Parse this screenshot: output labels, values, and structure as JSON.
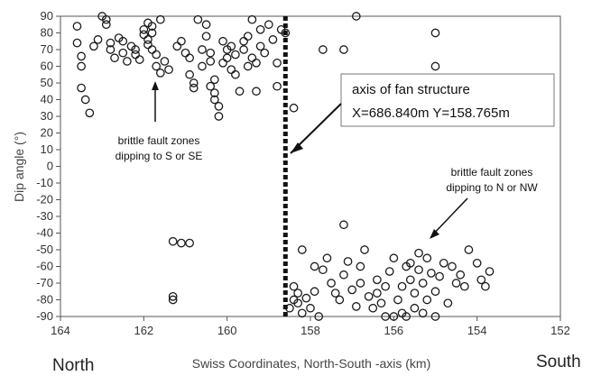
{
  "chart_data": {
    "type": "scatter",
    "xlabel": "Swiss Coordinates, North-South -axis (km)",
    "ylabel": "Dip angle (°)",
    "x_ticks": [
      "164",
      "162",
      "160",
      "158",
      "156",
      "154",
      "152"
    ],
    "y_ticks": [
      "90",
      "80",
      "70",
      "60",
      "50",
      "40",
      "30",
      "20",
      "10",
      "0",
      "-10",
      "-20",
      "-30",
      "-40",
      "-50",
      "-60",
      "-70",
      "-80",
      "-90"
    ],
    "xlim": [
      164,
      152
    ],
    "ylim": [
      -90,
      90
    ],
    "x_reversed": true,
    "left_direction_label": "North",
    "right_direction_label": "South",
    "fan_axis": {
      "x": 158.6,
      "style": "thick dotted vertical line",
      "label_title": "axis of fan structure",
      "label_coords": "X=686.840m  Y=158.765m"
    },
    "annotations": [
      {
        "line1": "brittle fault zones",
        "line2": "dipping to S or SE"
      },
      {
        "line1": "brittle fault zones",
        "line2": "dipping to N or NW"
      }
    ],
    "series": [
      {
        "marker": "open-circle",
        "points": [
          [
            163.6,
            84
          ],
          [
            163.6,
            74
          ],
          [
            163.5,
            66
          ],
          [
            163.5,
            60
          ],
          [
            163.5,
            47
          ],
          [
            163.4,
            40
          ],
          [
            163.3,
            32
          ],
          [
            163.2,
            72
          ],
          [
            163.1,
            76
          ],
          [
            163.0,
            90
          ],
          [
            162.9,
            88
          ],
          [
            162.9,
            85
          ],
          [
            162.8,
            74
          ],
          [
            162.8,
            70
          ],
          [
            162.7,
            65
          ],
          [
            162.6,
            77
          ],
          [
            162.5,
            75
          ],
          [
            162.5,
            68
          ],
          [
            162.4,
            63
          ],
          [
            162.3,
            72
          ],
          [
            162.2,
            70
          ],
          [
            162.2,
            67
          ],
          [
            162.1,
            64
          ],
          [
            162.0,
            82
          ],
          [
            162.0,
            79
          ],
          [
            161.9,
            86
          ],
          [
            161.9,
            76
          ],
          [
            161.9,
            73
          ],
          [
            161.8,
            84
          ],
          [
            161.8,
            80
          ],
          [
            161.8,
            70
          ],
          [
            161.7,
            67
          ],
          [
            161.7,
            60
          ],
          [
            161.6,
            88
          ],
          [
            161.6,
            56
          ],
          [
            161.5,
            63
          ],
          [
            161.4,
            58
          ],
          [
            161.2,
            72
          ],
          [
            161.1,
            75
          ],
          [
            161.0,
            68
          ],
          [
            160.9,
            65
          ],
          [
            160.9,
            55
          ],
          [
            160.8,
            50
          ],
          [
            160.8,
            47
          ],
          [
            160.7,
            88
          ],
          [
            160.6,
            70
          ],
          [
            160.6,
            60
          ],
          [
            160.5,
            85
          ],
          [
            160.5,
            78
          ],
          [
            160.4,
            68
          ],
          [
            160.4,
            63
          ],
          [
            160.4,
            48
          ],
          [
            160.3,
            52
          ],
          [
            160.3,
            44
          ],
          [
            160.3,
            40
          ],
          [
            160.2,
            36
          ],
          [
            160.2,
            30
          ],
          [
            160.1,
            75
          ],
          [
            160.1,
            62
          ],
          [
            160.0,
            70
          ],
          [
            160.0,
            65
          ],
          [
            159.9,
            58
          ],
          [
            159.9,
            72
          ],
          [
            159.8,
            67
          ],
          [
            159.8,
            55
          ],
          [
            159.7,
            45
          ],
          [
            159.6,
            75
          ],
          [
            159.6,
            70
          ],
          [
            159.5,
            78
          ],
          [
            159.5,
            60
          ],
          [
            159.4,
            88
          ],
          [
            159.4,
            65
          ],
          [
            159.3,
            45
          ],
          [
            159.2,
            82
          ],
          [
            159.2,
            72
          ],
          [
            159.1,
            68
          ],
          [
            159.0,
            85
          ],
          [
            158.9,
            76
          ],
          [
            158.8,
            62
          ],
          [
            158.8,
            48
          ],
          [
            158.7,
            82
          ],
          [
            158.6,
            80
          ],
          [
            159.3,
            62
          ],
          [
            161.3,
            -45
          ],
          [
            161.1,
            -46
          ],
          [
            160.9,
            -46
          ],
          [
            161.3,
            -78
          ],
          [
            161.3,
            -80
          ],
          [
            158.4,
            35
          ],
          [
            157.7,
            70
          ],
          [
            157.2,
            70
          ],
          [
            156.9,
            90
          ],
          [
            155.0,
            80
          ],
          [
            155.0,
            60
          ],
          [
            158.5,
            -85
          ],
          [
            158.4,
            -72
          ],
          [
            158.4,
            -80
          ],
          [
            158.3,
            -76
          ],
          [
            158.3,
            -82
          ],
          [
            158.2,
            -50
          ],
          [
            158.2,
            -88
          ],
          [
            158.1,
            -79
          ],
          [
            158.0,
            -85
          ],
          [
            157.9,
            -75
          ],
          [
            157.8,
            -90
          ],
          [
            157.7,
            -62
          ],
          [
            157.6,
            -55
          ],
          [
            157.5,
            -70
          ],
          [
            157.4,
            -76
          ],
          [
            157.3,
            -80
          ],
          [
            157.2,
            -35
          ],
          [
            157.2,
            -65
          ],
          [
            157.1,
            -57
          ],
          [
            157.0,
            -74
          ],
          [
            156.9,
            -84
          ],
          [
            156.8,
            -70
          ],
          [
            156.8,
            -60
          ],
          [
            156.7,
            -50
          ],
          [
            156.6,
            -78
          ],
          [
            156.5,
            -85
          ],
          [
            156.4,
            -68
          ],
          [
            156.3,
            -82
          ],
          [
            156.2,
            -72
          ],
          [
            156.1,
            -63
          ],
          [
            156.0,
            -90
          ],
          [
            156.0,
            -55
          ],
          [
            155.9,
            -80
          ],
          [
            155.8,
            -72
          ],
          [
            155.7,
            -60
          ],
          [
            155.7,
            -90
          ],
          [
            155.6,
            -68
          ],
          [
            155.5,
            -76
          ],
          [
            155.5,
            -85
          ],
          [
            155.4,
            -62
          ],
          [
            155.4,
            -52
          ],
          [
            155.3,
            -88
          ],
          [
            155.3,
            -70
          ],
          [
            155.2,
            -80
          ],
          [
            155.1,
            -64
          ],
          [
            155.0,
            -75
          ],
          [
            155.0,
            -90
          ],
          [
            154.9,
            -66
          ],
          [
            154.8,
            -58
          ],
          [
            154.7,
            -82
          ],
          [
            154.6,
            -60
          ],
          [
            154.5,
            -70
          ],
          [
            154.3,
            -72
          ],
          [
            154.2,
            -50
          ],
          [
            154.0,
            -58
          ],
          [
            153.9,
            -68
          ],
          [
            153.8,
            -72
          ],
          [
            153.7,
            -63
          ],
          [
            156.2,
            -90
          ],
          [
            155.6,
            -58
          ],
          [
            157.9,
            -60
          ],
          [
            155.8,
            -88
          ],
          [
            156.4,
            -76
          ],
          [
            155.2,
            -55
          ],
          [
            154.4,
            -65
          ]
        ]
      }
    ]
  }
}
